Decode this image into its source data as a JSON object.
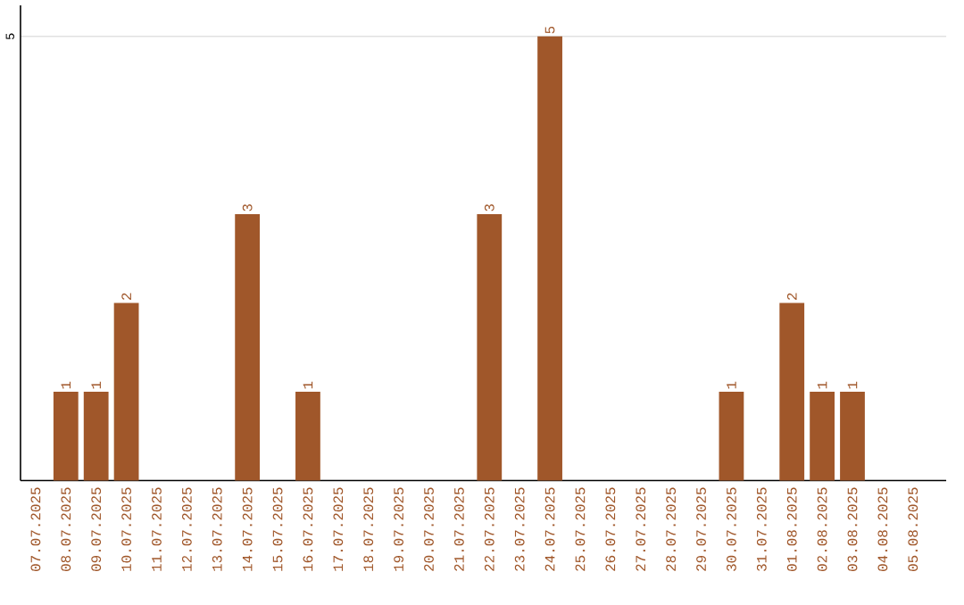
{
  "chart_data": {
    "type": "bar",
    "categories": [
      "07.07.2025",
      "08.07.2025",
      "09.07.2025",
      "10.07.2025",
      "11.07.2025",
      "12.07.2025",
      "13.07.2025",
      "14.07.2025",
      "15.07.2025",
      "16.07.2025",
      "17.07.2025",
      "18.07.2025",
      "19.07.2025",
      "20.07.2025",
      "21.07.2025",
      "22.07.2025",
      "23.07.2025",
      "24.07.2025",
      "25.07.2025",
      "26.07.2025",
      "27.07.2025",
      "28.07.2025",
      "29.07.2025",
      "30.07.2025",
      "31.07.2025",
      "01.08.2025",
      "02.08.2025",
      "03.08.2025",
      "04.08.2025",
      "05.08.2025"
    ],
    "values": [
      null,
      1,
      1,
      2,
      null,
      null,
      null,
      3,
      null,
      1,
      null,
      null,
      null,
      null,
      null,
      3,
      null,
      5,
      null,
      null,
      null,
      null,
      null,
      1,
      null,
      2,
      1,
      1,
      null,
      null
    ],
    "color": "#a0572a",
    "ylim": [
      0,
      5.35
    ],
    "yticks": [
      5
    ],
    "grid": "y",
    "data_labels": true
  }
}
